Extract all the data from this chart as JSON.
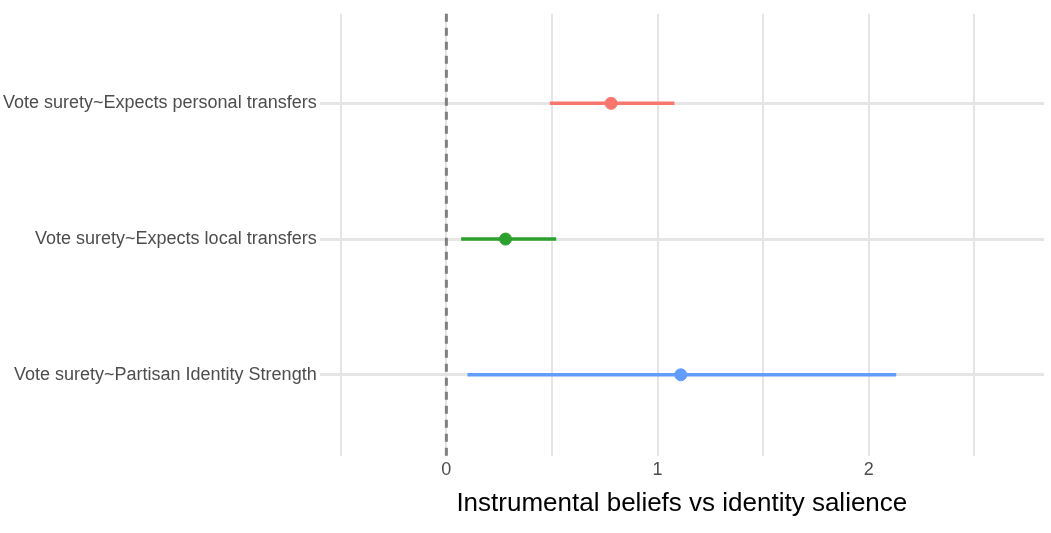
{
  "chart_data": {
    "type": "scatter",
    "orientation": "horizontal",
    "xlabel": "Instrumental beliefs vs identity salience",
    "categories": [
      "Vote surety~Expects personal transfers",
      "Vote surety~Expects local transfers",
      "Vote surety~Partisan Identity Strength"
    ],
    "values": [
      0.78,
      0.28,
      1.11
    ],
    "errors": [
      [
        0.49,
        1.08
      ],
      [
        0.07,
        0.52
      ],
      [
        0.1,
        2.13
      ]
    ],
    "colors": [
      "#f8766d",
      "#2ca02c",
      "#619cff"
    ],
    "marker": "circle",
    "xlim": [
      -0.6,
      2.83
    ],
    "xticks": [
      {
        "value": -0.5,
        "label": null
      },
      0,
      {
        "value": 0.5,
        "label": null
      },
      1,
      {
        "value": 1.5,
        "label": null
      },
      2,
      {
        "value": 2.5,
        "label": null
      }
    ],
    "ref_lines": [
      {
        "axis": "x",
        "value": 0,
        "color": "#808080",
        "line_style": "dashed"
      }
    ],
    "grid": true
  }
}
